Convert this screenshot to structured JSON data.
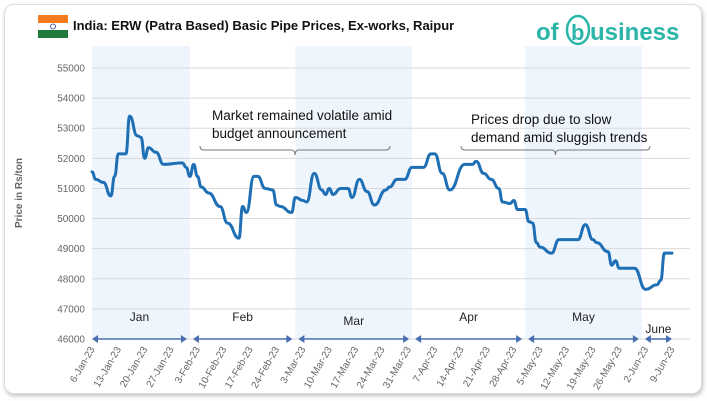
{
  "title": "India: ERW (Patra Based) Basic Pipe Prices, Ex-works, Raipur",
  "logo_text": "ofbusiness",
  "flag": "india-flag",
  "colors": {
    "line": "#1f6fb5",
    "band": "#eef5fd",
    "grid": "#d9d9d9",
    "arrow": "#4a6fb0",
    "logo": "#2bb5a8"
  },
  "chart_data": {
    "type": "line",
    "title": "India: ERW (Patra Based) Basic Pipe Prices, Ex-works, Raipur",
    "xlabel": "",
    "ylabel": "Price in Rs/ton",
    "ylim": [
      46000,
      55000
    ],
    "yticks": [
      "46000",
      "47000",
      "48000",
      "49000",
      "50000",
      "51000",
      "52000",
      "53000",
      "54000",
      "55000"
    ],
    "xlim": [
      "2023-01-06",
      "2023-06-09"
    ],
    "xticks": [
      "6-Jan-23",
      "13-Jan-23",
      "20-Jan-23",
      "27-Jan-23",
      "3-Feb-23",
      "10-Feb-23",
      "17-Feb-23",
      "24-Feb-23",
      "3-Mar-23",
      "10-Mar-23",
      "17-Mar-23",
      "24-Mar-23",
      "31-Mar-23",
      "7-Apr-23",
      "14-Apr-23",
      "21-Apr-23",
      "28-Apr-23",
      "5-May-23",
      "12-May-23",
      "19-May-23",
      "26-May-23",
      "2-Jun-23",
      "9-Jun-23"
    ],
    "grid": true,
    "months": [
      "Jan",
      "Feb",
      "Mar",
      "Apr",
      "May",
      "June"
    ],
    "annotations": [
      {
        "lines": [
          "Market remained volatile amid",
          "budget announcement"
        ],
        "from": "2023-02-01",
        "to": "2023-03-30"
      },
      {
        "lines": [
          "Prices drop due to slow",
          "demand amid sluggish trends"
        ],
        "from": "2023-04-25",
        "to": "2023-06-01"
      }
    ],
    "series": [
      {
        "x": [
          "2023-01-06",
          "2023-01-07",
          "2023-01-09",
          "2023-01-11",
          "2023-01-12",
          "2023-01-13",
          "2023-01-15",
          "2023-01-16",
          "2023-01-18",
          "2023-01-19",
          "2023-01-20",
          "2023-01-21",
          "2023-01-23",
          "2023-01-25",
          "2023-01-30",
          "2023-01-31",
          "2023-02-01",
          "2023-02-02",
          "2023-02-03",
          "2023-02-04",
          "2023-02-06",
          "2023-02-09",
          "2023-02-11",
          "2023-02-14",
          "2023-02-15",
          "2023-02-16",
          "2023-02-18",
          "2023-02-19",
          "2023-02-21",
          "2023-02-23",
          "2023-02-24",
          "2023-02-25",
          "2023-02-28",
          "2023-03-01",
          "2023-03-03",
          "2023-03-04",
          "2023-03-06",
          "2023-03-08",
          "2023-03-09",
          "2023-03-10",
          "2023-03-11",
          "2023-03-13",
          "2023-03-15",
          "2023-03-16",
          "2023-03-18",
          "2023-03-20",
          "2023-03-22",
          "2023-03-25",
          "2023-03-26",
          "2023-03-28",
          "2023-03-30",
          "2023-04-01",
          "2023-04-04",
          "2023-04-06",
          "2023-04-07",
          "2023-04-09",
          "2023-04-11",
          "2023-04-15",
          "2023-04-17",
          "2023-04-18",
          "2023-04-20",
          "2023-04-22",
          "2023-04-24",
          "2023-04-25",
          "2023-04-27",
          "2023-04-28",
          "2023-04-29",
          "2023-05-01",
          "2023-05-02",
          "2023-05-03",
          "2023-05-04",
          "2023-05-05",
          "2023-05-08",
          "2023-05-10",
          "2023-05-15",
          "2023-05-17",
          "2023-05-19",
          "2023-05-20",
          "2023-05-23",
          "2023-05-24",
          "2023-05-25",
          "2023-05-26",
          "2023-05-30",
          "2023-06-02",
          "2023-06-05",
          "2023-06-06",
          "2023-06-07",
          "2023-06-09"
        ],
        "values": [
          51550,
          51300,
          51200,
          50750,
          51400,
          52150,
          52150,
          53400,
          52750,
          52700,
          52000,
          52350,
          52200,
          51800,
          51850,
          51700,
          51400,
          51800,
          51400,
          51050,
          50850,
          50400,
          49850,
          49350,
          50400,
          50200,
          51400,
          51400,
          51000,
          50950,
          50450,
          50400,
          50200,
          50700,
          50600,
          50550,
          51500,
          50950,
          50800,
          51000,
          50800,
          51000,
          51000,
          50700,
          51300,
          50900,
          50450,
          50950,
          51050,
          51300,
          51300,
          51700,
          51700,
          52150,
          52150,
          51500,
          50950,
          51800,
          51800,
          51900,
          51500,
          51300,
          51000,
          50550,
          50500,
          50600,
          50300,
          50300,
          49900,
          49850,
          49200,
          49050,
          48850,
          49300,
          49300,
          49800,
          49300,
          49200,
          48900,
          48450,
          48600,
          48350,
          48350,
          47650,
          47800,
          47950,
          48850,
          48850
        ]
      }
    ]
  }
}
